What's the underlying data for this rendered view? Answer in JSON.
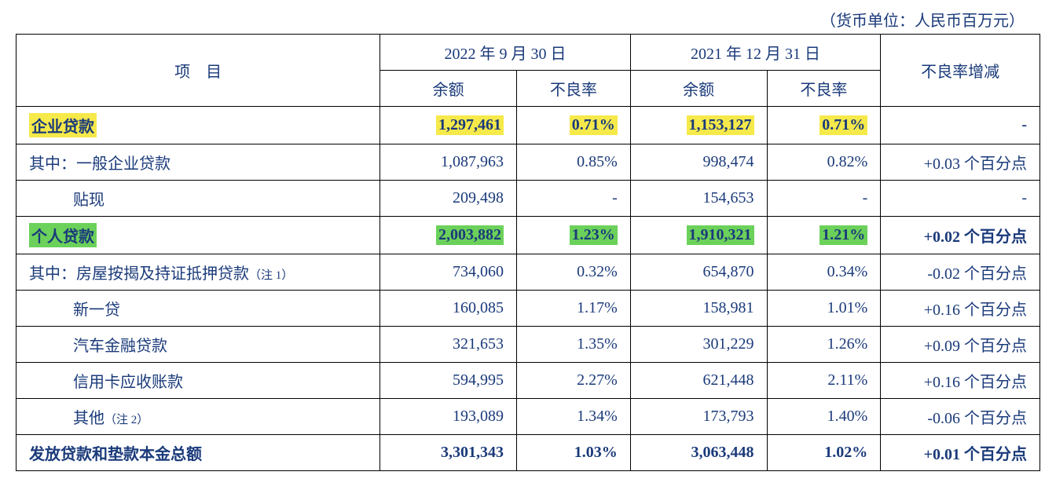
{
  "unit_label": "（货币单位：人民币百万元）",
  "header": {
    "item": "项　目",
    "period1": "2022 年 9 月 30 日",
    "period2": "2021 年 12 月 31 日",
    "balance": "余额",
    "npl_rate": "不良率",
    "change": "不良率增减"
  },
  "rows": {
    "r1": {
      "item": "企业贷款",
      "bal1": "1,297,461",
      "rate1": "0.71%",
      "bal2": "1,153,127",
      "rate2": "0.71%",
      "change": "-"
    },
    "r2": {
      "item": "其中：一般企业贷款",
      "bal1": "1,087,963",
      "rate1": "0.85%",
      "bal2": "998,474",
      "rate2": "0.82%",
      "change": "+0.03 个百分点"
    },
    "r3": {
      "item": "贴现",
      "bal1": "209,498",
      "rate1": "-",
      "bal2": "154,653",
      "rate2": "-",
      "change": "-"
    },
    "r4": {
      "item": "个人贷款",
      "bal1": "2,003,882",
      "rate1": "1.23%",
      "bal2": "1,910,321",
      "rate2": "1.21%",
      "change": "+0.02 个百分点"
    },
    "r5": {
      "item_main": "其中：房屋按揭及持证抵押贷款",
      "item_note": "（注 1）",
      "bal1": "734,060",
      "rate1": "0.32%",
      "bal2": "654,870",
      "rate2": "0.34%",
      "change": "-0.02 个百分点"
    },
    "r6": {
      "item": "新一贷",
      "bal1": "160,085",
      "rate1": "1.17%",
      "bal2": "158,981",
      "rate2": "1.01%",
      "change": "+0.16 个百分点"
    },
    "r7": {
      "item": "汽车金融贷款",
      "bal1": "321,653",
      "rate1": "1.35%",
      "bal2": "301,229",
      "rate2": "1.26%",
      "change": "+0.09 个百分点"
    },
    "r8": {
      "item": "信用卡应收账款",
      "bal1": "594,995",
      "rate1": "2.27%",
      "bal2": "621,448",
      "rate2": "2.11%",
      "change": "+0.16 个百分点"
    },
    "r9": {
      "item_main": "其他",
      "item_note": "（注 2）",
      "bal1": "193,089",
      "rate1": "1.34%",
      "bal2": "173,793",
      "rate2": "1.40%",
      "change": "-0.06 个百分点"
    },
    "r10": {
      "item": "发放贷款和垫款本金总额",
      "bal1": "3,301,343",
      "rate1": "1.03%",
      "bal2": "3,063,448",
      "rate2": "1.02%",
      "change": "+0.01 个百分点"
    }
  },
  "styling": {
    "text_color": "#1a3a7a",
    "border_color": "#000000",
    "highlight_yellow": "#f6e94a",
    "highlight_green": "#6bd15a",
    "font_size_main": 20,
    "font_size_note": 15,
    "background": "#ffffff"
  }
}
